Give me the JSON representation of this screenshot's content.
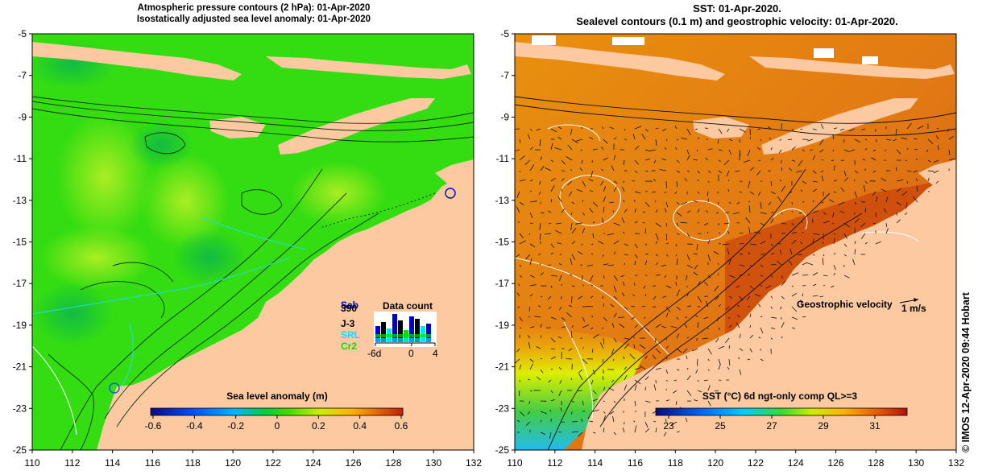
{
  "left_panel": {
    "title_line1": "Atmospheric pressure contours (2 hPa): 01-Apr-2020",
    "title_line2": "Isostatically adjusted sea level anomaly: 01-Apr-2020",
    "colorbar": {
      "title": "Sea level anomaly (m)",
      "ticks": [
        "-0.6",
        "-0.4",
        "-0.2",
        "0",
        "0.2",
        "0.4",
        "0.6"
      ]
    },
    "data_count": {
      "title": "Data count",
      "satellites": [
        {
          "label": "Sab",
          "color": "#0000cc"
        },
        {
          "label": "390",
          "color": "#000000"
        },
        {
          "label": "J-3",
          "color": "#000000"
        },
        {
          "label": "SRL",
          "color": "#00e5ff"
        },
        {
          "label": "Cr2",
          "color": "#00e000"
        }
      ],
      "x_ticks": [
        "-6d",
        "0",
        "4"
      ]
    }
  },
  "right_panel": {
    "title_line1": "SST: 01-Apr-2020.",
    "title_line2": "Sealevel contours (0.1 m) and geostrophic velocity: 01-Apr-2020.",
    "velocity_legend": "Geostrophic velocity",
    "velocity_scale": "1 m/s",
    "colorbar": {
      "title": "SST (°C) 6d ngt-only comp QL>=3",
      "ticks": [
        "23",
        "25",
        "27",
        "29",
        "31"
      ]
    }
  },
  "axes": {
    "lon_ticks": [
      "110",
      "112",
      "114",
      "116",
      "118",
      "120",
      "122",
      "124",
      "126",
      "128",
      "130",
      "132"
    ],
    "lat_ticks": [
      "-5",
      "-7",
      "-9",
      "-11",
      "-13",
      "-15",
      "-17",
      "-19",
      "-21",
      "-23",
      "-25"
    ]
  },
  "colors": {
    "land": "#fdc9a0",
    "sla_ocean": "#33dd11",
    "sst_ocean": "#e07a10"
  },
  "credit": "© IMOS 12-Apr-2020 09:44 Hobart"
}
